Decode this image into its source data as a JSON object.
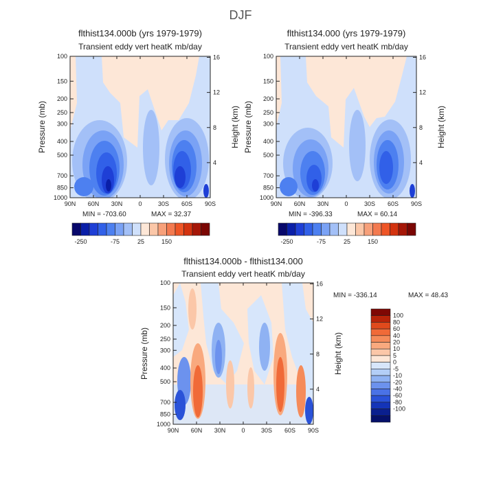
{
  "page": {
    "title": "DJF"
  },
  "palettes": {
    "top": [
      "#08086b",
      "#0a1fa8",
      "#1e3fd6",
      "#3160e8",
      "#4d80f0",
      "#7aa2f5",
      "#a3c0f7",
      "#cfe0fb",
      "#fde7d7",
      "#fbc7a8",
      "#f7a07a",
      "#f37a50",
      "#ee5526",
      "#d3330f",
      "#a51607",
      "#7a0603"
    ],
    "diff": [
      "#fde7d7",
      "#fbc7a8",
      "#f9a97e",
      "#f58b5a",
      "#f06a38",
      "#e04a1c",
      "#b82409",
      "#7f0804",
      "#d7e6fb",
      "#b3cef7",
      "#8fb2f3",
      "#6c92ee",
      "#4a72e6",
      "#2a52d8",
      "#1434b8",
      "#0a1f8e",
      "#05106a"
    ]
  },
  "chart_data": [
    {
      "type": "heatmap",
      "id": "panel-left",
      "title": "flthist134.000b (yrs 1979-1979)",
      "subtitle": "Transient eddy vert heatK mb/day",
      "xlabel": "",
      "ylabel": "Pressure (mb)",
      "ylabel_right": "Height (km)",
      "xticks": [
        "90N",
        "60N",
        "30N",
        "0",
        "30S",
        "60S",
        "90S"
      ],
      "yticks": [
        100,
        150,
        200,
        250,
        300,
        400,
        500,
        700,
        850,
        1000
      ],
      "yticks_right": [
        16,
        12,
        8,
        4
      ],
      "ylim": [
        1000,
        100
      ],
      "min_label": "MIN = -703.60",
      "max_label": "MAX = 32.37",
      "colorbar_labels": [
        "-250",
        "-75",
        "25",
        "150"
      ]
    },
    {
      "type": "heatmap",
      "id": "panel-right",
      "title": "flthist134.000 (yrs 1979-1979)",
      "subtitle": "Transient eddy vert heatK mb/day",
      "xlabel": "",
      "ylabel": "Pressure (mb)",
      "ylabel_right": "Height (km)",
      "xticks": [
        "90N",
        "60N",
        "30N",
        "0",
        "30S",
        "60S",
        "90S"
      ],
      "yticks": [
        100,
        150,
        200,
        250,
        300,
        400,
        500,
        700,
        850,
        1000
      ],
      "yticks_right": [
        16,
        12,
        8,
        4
      ],
      "ylim": [
        1000,
        100
      ],
      "min_label": "MIN = -396.33",
      "max_label": "MAX = 60.14",
      "colorbar_labels": [
        "-250",
        "-75",
        "25",
        "150"
      ]
    },
    {
      "type": "heatmap",
      "id": "panel-diff",
      "title": "flthist134.000b - flthist134.000",
      "subtitle": "Transient eddy vert heatK mb/day",
      "xlabel": "",
      "ylabel": "Pressure (mb)",
      "ylabel_right": "Height (km)",
      "xticks": [
        "90N",
        "60N",
        "30N",
        "0",
        "30S",
        "60S",
        "90S"
      ],
      "yticks": [
        100,
        150,
        200,
        250,
        300,
        400,
        500,
        700,
        850,
        1000
      ],
      "yticks_right": [
        16,
        12,
        8,
        4
      ],
      "ylim": [
        1000,
        100
      ],
      "min_label": "MIN = -336.14",
      "max_label": "MAX = 48.43",
      "colorbar_labels": [
        "100",
        "80",
        "60",
        "40",
        "20",
        "10",
        "5",
        "0",
        "-5",
        "-10",
        "-20",
        "-40",
        "-60",
        "-80",
        "-100"
      ]
    }
  ]
}
